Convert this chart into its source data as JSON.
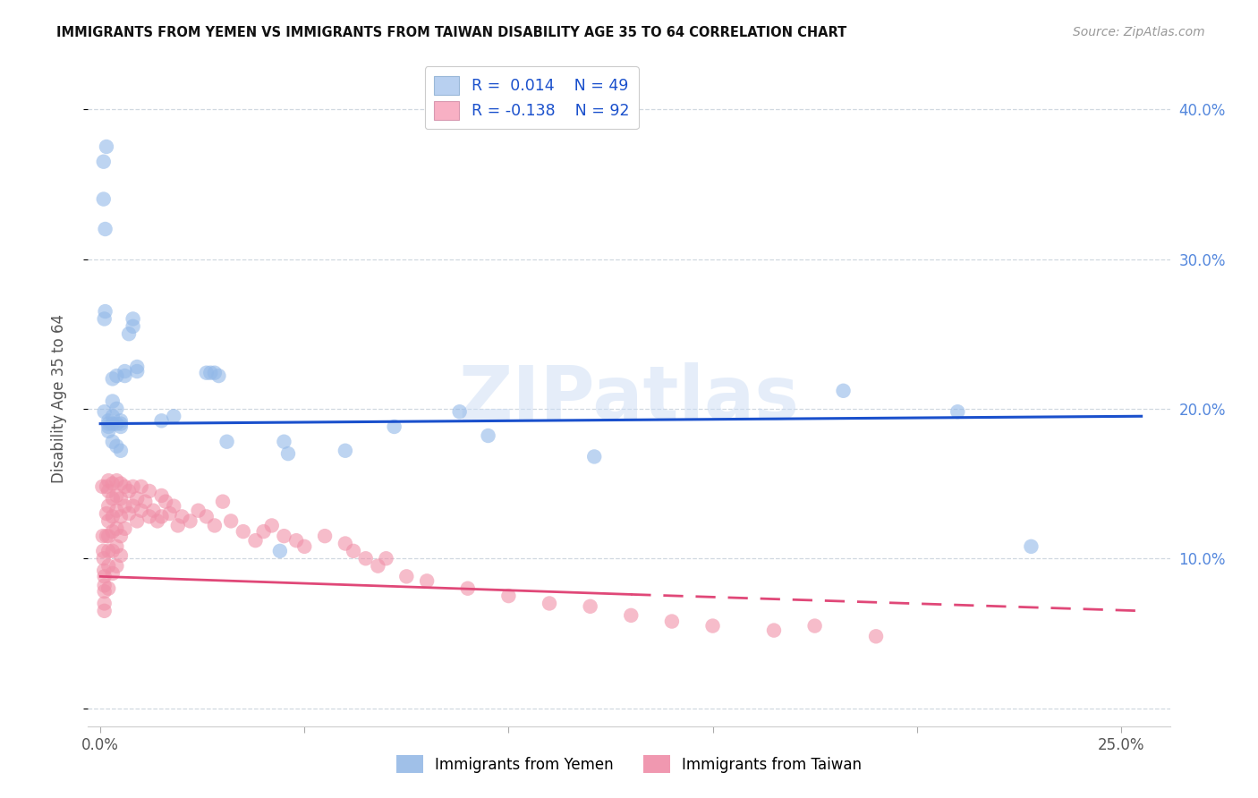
{
  "title": "IMMIGRANTS FROM YEMEN VS IMMIGRANTS FROM TAIWAN DISABILITY AGE 35 TO 64 CORRELATION CHART",
  "source": "Source: ZipAtlas.com",
  "xlim": [
    -0.003,
    0.262
  ],
  "ylim": [
    -0.012,
    0.425
  ],
  "x_ticks": [
    0.0,
    0.05,
    0.1,
    0.15,
    0.2,
    0.25
  ],
  "x_tick_labels": [
    "0.0%",
    "",
    "",
    "",
    "",
    "25.0%"
  ],
  "y_ticks": [
    0.0,
    0.1,
    0.2,
    0.3,
    0.4
  ],
  "y_tick_labels": [
    "",
    "10.0%",
    "20.0%",
    "30.0%",
    "40.0%"
  ],
  "ylabel": "Disability Age 35 to 64",
  "watermark": "ZIPatlas",
  "blue_scatter_color": "#92b8e8",
  "pink_scatter_color": "#f090a8",
  "blue_line_color": "#1a50cc",
  "pink_line_color": "#e04878",
  "legend_blue_patch": "#b8d0f0",
  "legend_pink_patch": "#f8b0c4",
  "bottom_legend_blue": "#a0c0e8",
  "bottom_legend_pink": "#f098b0",
  "bottom_legend": [
    "Immigrants from Yemen",
    "Immigrants from Taiwan"
  ],
  "yemen_x": [
    0.0008,
    0.0008,
    0.001,
    0.0012,
    0.0012,
    0.0015,
    0.002,
    0.002,
    0.002,
    0.002,
    0.003,
    0.003,
    0.003,
    0.003,
    0.004,
    0.004,
    0.004,
    0.005,
    0.005,
    0.005,
    0.006,
    0.006,
    0.007,
    0.008,
    0.008,
    0.009,
    0.009,
    0.003,
    0.004,
    0.005,
    0.015,
    0.018,
    0.026,
    0.027,
    0.028,
    0.029,
    0.031,
    0.044,
    0.045,
    0.046,
    0.06,
    0.072,
    0.088,
    0.095,
    0.121,
    0.182,
    0.21,
    0.228,
    0.001
  ],
  "yemen_y": [
    0.365,
    0.34,
    0.26,
    0.265,
    0.32,
    0.375,
    0.192,
    0.19,
    0.188,
    0.185,
    0.205,
    0.22,
    0.195,
    0.19,
    0.2,
    0.222,
    0.19,
    0.192,
    0.19,
    0.188,
    0.225,
    0.222,
    0.25,
    0.26,
    0.255,
    0.225,
    0.228,
    0.178,
    0.175,
    0.172,
    0.192,
    0.195,
    0.224,
    0.224,
    0.224,
    0.222,
    0.178,
    0.105,
    0.178,
    0.17,
    0.172,
    0.188,
    0.198,
    0.182,
    0.168,
    0.212,
    0.198,
    0.108,
    0.198
  ],
  "taiwan_x": [
    0.0005,
    0.0006,
    0.0007,
    0.0008,
    0.0009,
    0.001,
    0.001,
    0.001,
    0.001,
    0.001,
    0.0015,
    0.0015,
    0.0015,
    0.002,
    0.002,
    0.002,
    0.002,
    0.002,
    0.002,
    0.002,
    0.002,
    0.003,
    0.003,
    0.003,
    0.003,
    0.003,
    0.003,
    0.004,
    0.004,
    0.004,
    0.004,
    0.004,
    0.004,
    0.005,
    0.005,
    0.005,
    0.005,
    0.005,
    0.006,
    0.006,
    0.006,
    0.007,
    0.007,
    0.008,
    0.008,
    0.009,
    0.009,
    0.01,
    0.01,
    0.011,
    0.012,
    0.012,
    0.013,
    0.014,
    0.015,
    0.015,
    0.016,
    0.017,
    0.018,
    0.019,
    0.02,
    0.022,
    0.024,
    0.026,
    0.028,
    0.03,
    0.032,
    0.035,
    0.038,
    0.04,
    0.042,
    0.045,
    0.048,
    0.05,
    0.055,
    0.06,
    0.062,
    0.065,
    0.068,
    0.07,
    0.075,
    0.08,
    0.09,
    0.1,
    0.11,
    0.12,
    0.13,
    0.14,
    0.15,
    0.165,
    0.175,
    0.19
  ],
  "taiwan_y": [
    0.148,
    0.115,
    0.105,
    0.1,
    0.092,
    0.088,
    0.082,
    0.078,
    0.07,
    0.065,
    0.148,
    0.13,
    0.115,
    0.152,
    0.145,
    0.135,
    0.125,
    0.115,
    0.105,
    0.095,
    0.08,
    0.15,
    0.14,
    0.128,
    0.118,
    0.105,
    0.09,
    0.152,
    0.142,
    0.132,
    0.12,
    0.108,
    0.095,
    0.15,
    0.14,
    0.128,
    0.115,
    0.102,
    0.148,
    0.135,
    0.12,
    0.145,
    0.13,
    0.148,
    0.135,
    0.14,
    0.125,
    0.148,
    0.132,
    0.138,
    0.145,
    0.128,
    0.132,
    0.125,
    0.142,
    0.128,
    0.138,
    0.13,
    0.135,
    0.122,
    0.128,
    0.125,
    0.132,
    0.128,
    0.122,
    0.138,
    0.125,
    0.118,
    0.112,
    0.118,
    0.122,
    0.115,
    0.112,
    0.108,
    0.115,
    0.11,
    0.105,
    0.1,
    0.095,
    0.1,
    0.088,
    0.085,
    0.08,
    0.075,
    0.07,
    0.068,
    0.062,
    0.058,
    0.055,
    0.052,
    0.055,
    0.048
  ]
}
